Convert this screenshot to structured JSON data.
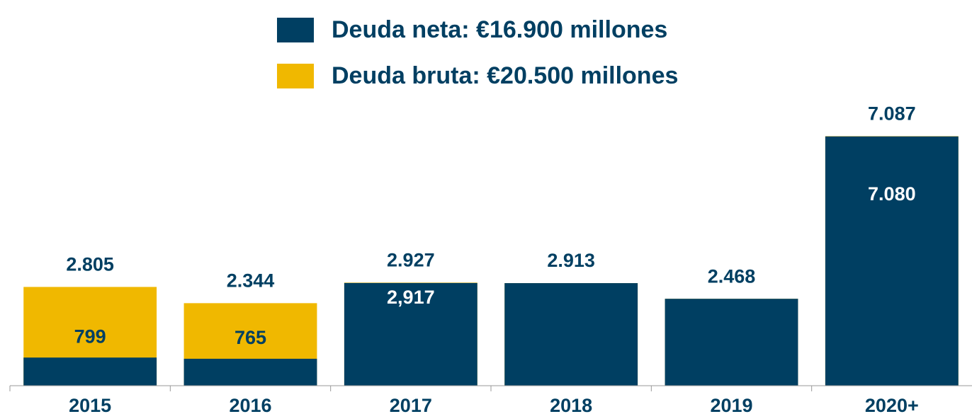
{
  "chart_data": {
    "type": "bar",
    "categories": [
      "2015",
      "2016",
      "2017",
      "2018",
      "2019",
      "2020+"
    ],
    "series": [
      {
        "name": "Deuda neta: €16.900 millones",
        "color": "#003f62",
        "values": [
          799,
          765,
          2917,
          2913,
          2468,
          7080
        ],
        "value_labels": [
          "799",
          "765",
          "2,917",
          null,
          null,
          "7.080"
        ]
      },
      {
        "name": "Deuda bruta: €20.500 millones",
        "color": "#f0b800",
        "values": [
          2805,
          2344,
          2927,
          2913,
          2468,
          7087
        ],
        "value_labels": [
          "2.805",
          "2.344",
          "2.927",
          "2.913",
          "2.468",
          "7.087"
        ]
      }
    ],
    "ylim": [
      0,
      8000
    ]
  }
}
